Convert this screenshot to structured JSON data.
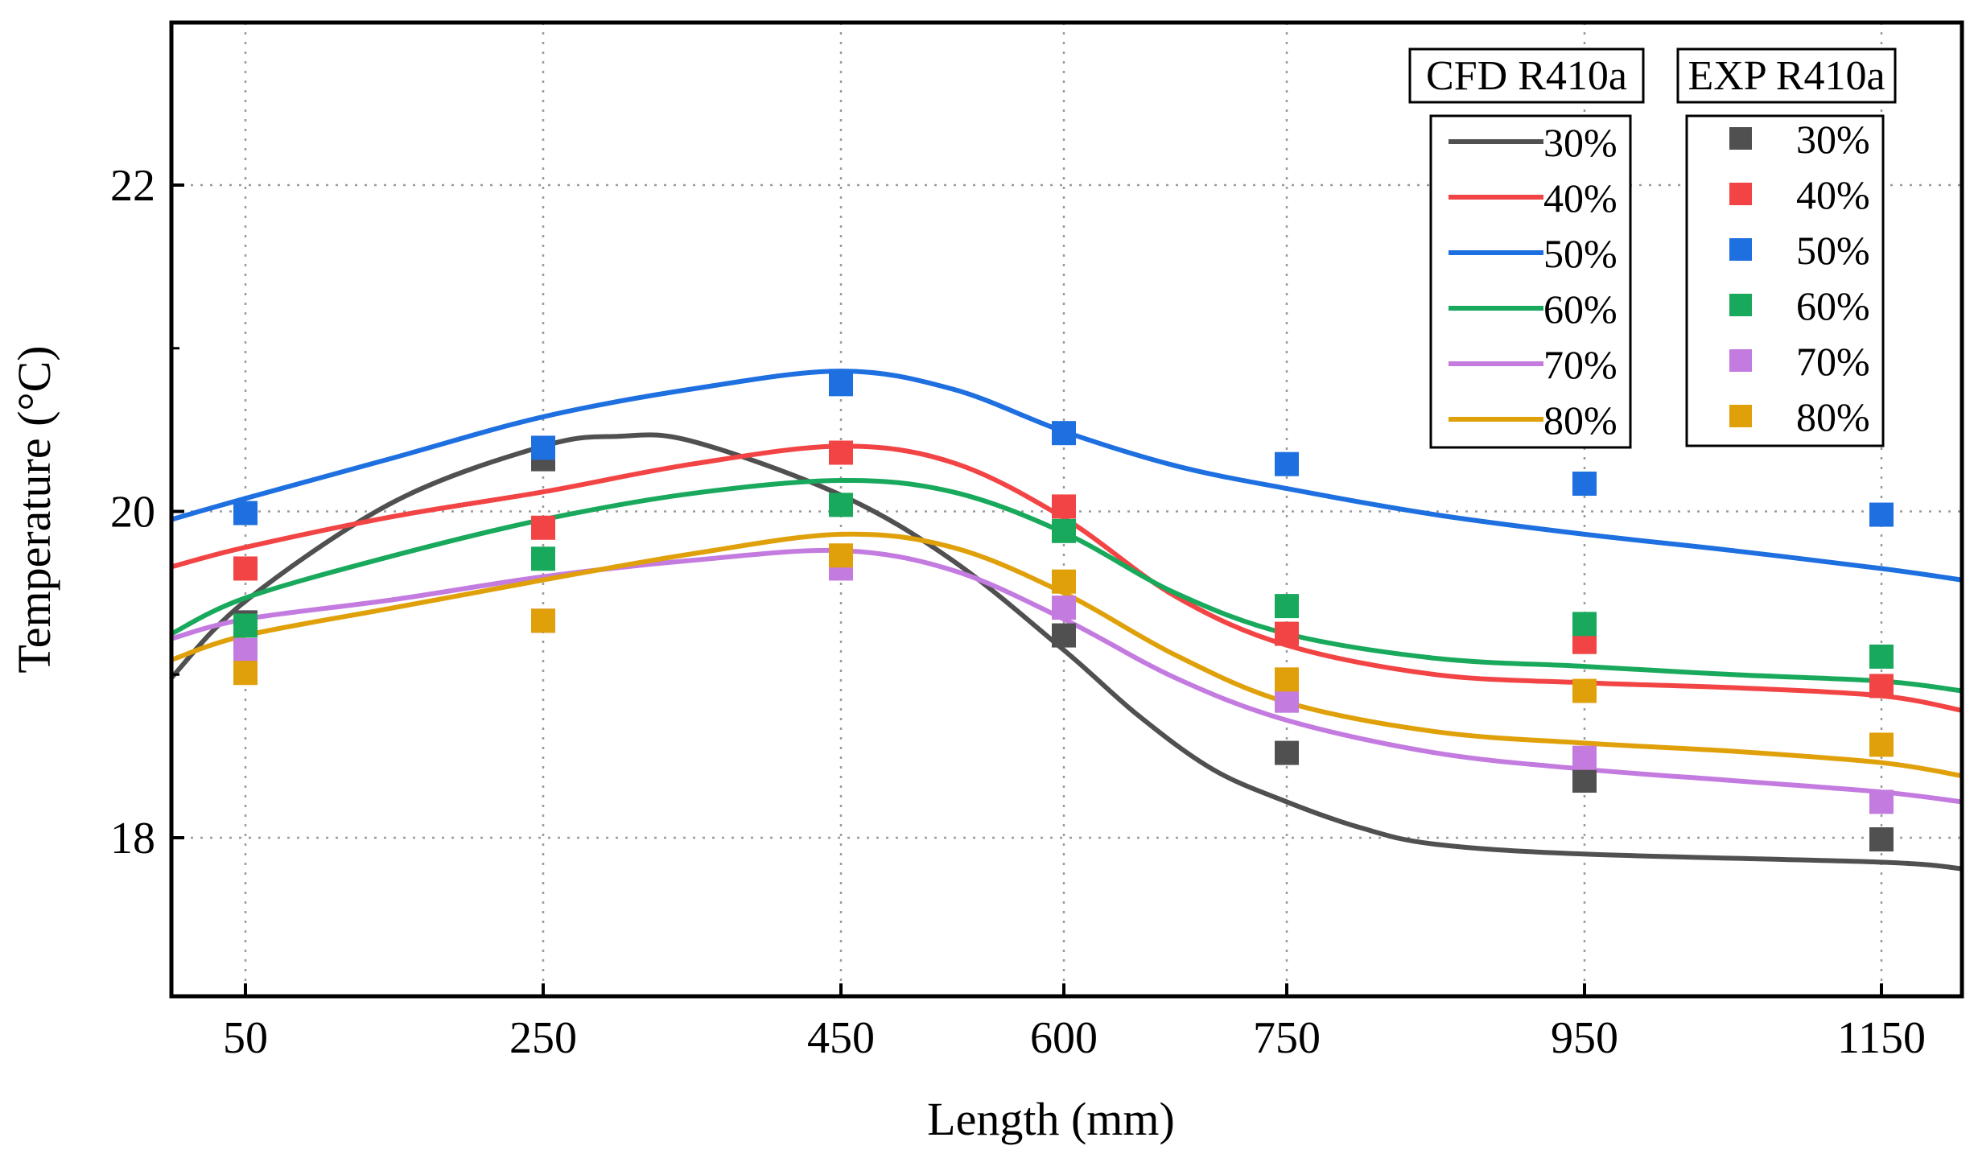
{
  "chart_data": {
    "type": "line",
    "title": "",
    "xlabel": "Length (mm)",
    "ylabel": "Temperature (°C)",
    "x_ticks": [
      50,
      250,
      450,
      600,
      750,
      950,
      1150
    ],
    "y_ticks": [
      18,
      20,
      22
    ],
    "ylim": [
      17,
      23.1
    ],
    "grid": true,
    "cfd_legend_title": "CFD R410a",
    "exp_legend_title": "EXP R410a",
    "cfd_series": [
      {
        "name": "30%",
        "color": "#505050",
        "values": [
          [
            0,
            18.98
          ],
          [
            50,
            19.45
          ],
          [
            150,
            20.06
          ],
          [
            250,
            20.4
          ],
          [
            300,
            20.46
          ],
          [
            350,
            20.43
          ],
          [
            450,
            20.1
          ],
          [
            525,
            19.7
          ],
          [
            600,
            19.15
          ],
          [
            650,
            18.75
          ],
          [
            700,
            18.42
          ],
          [
            750,
            18.22
          ],
          [
            800,
            18.06
          ],
          [
            850,
            17.96
          ],
          [
            950,
            17.9
          ],
          [
            1150,
            17.85
          ],
          [
            1200,
            17.81
          ]
        ]
      },
      {
        "name": "40%",
        "color": "#F24444",
        "values": [
          [
            0,
            19.66
          ],
          [
            50,
            19.78
          ],
          [
            150,
            19.97
          ],
          [
            250,
            20.12
          ],
          [
            350,
            20.29
          ],
          [
            450,
            20.4
          ],
          [
            525,
            20.3
          ],
          [
            600,
            19.96
          ],
          [
            675,
            19.48
          ],
          [
            750,
            19.18
          ],
          [
            850,
            19.0
          ],
          [
            950,
            18.95
          ],
          [
            1050,
            18.92
          ],
          [
            1150,
            18.87
          ],
          [
            1200,
            18.78
          ]
        ]
      },
      {
        "name": "50%",
        "color": "#1E6FE0",
        "values": [
          [
            0,
            19.95
          ],
          [
            50,
            20.08
          ],
          [
            150,
            20.33
          ],
          [
            250,
            20.58
          ],
          [
            350,
            20.75
          ],
          [
            450,
            20.86
          ],
          [
            525,
            20.75
          ],
          [
            600,
            20.49
          ],
          [
            675,
            20.28
          ],
          [
            750,
            20.14
          ],
          [
            850,
            19.98
          ],
          [
            950,
            19.86
          ],
          [
            1050,
            19.76
          ],
          [
            1150,
            19.65
          ],
          [
            1200,
            19.58
          ]
        ]
      },
      {
        "name": "60%",
        "color": "#19A95C",
        "values": [
          [
            0,
            19.25
          ],
          [
            50,
            19.47
          ],
          [
            150,
            19.73
          ],
          [
            250,
            19.95
          ],
          [
            350,
            20.11
          ],
          [
            450,
            20.19
          ],
          [
            525,
            20.12
          ],
          [
            600,
            19.87
          ],
          [
            675,
            19.5
          ],
          [
            750,
            19.25
          ],
          [
            850,
            19.1
          ],
          [
            950,
            19.05
          ],
          [
            1050,
            19.0
          ],
          [
            1150,
            18.96
          ],
          [
            1200,
            18.9
          ]
        ]
      },
      {
        "name": "70%",
        "color": "#C47BE0",
        "values": [
          [
            0,
            19.22
          ],
          [
            50,
            19.34
          ],
          [
            150,
            19.46
          ],
          [
            250,
            19.6
          ],
          [
            350,
            19.7
          ],
          [
            450,
            19.76
          ],
          [
            525,
            19.64
          ],
          [
            600,
            19.34
          ],
          [
            675,
            18.98
          ],
          [
            750,
            18.72
          ],
          [
            850,
            18.52
          ],
          [
            950,
            18.42
          ],
          [
            1050,
            18.35
          ],
          [
            1150,
            18.28
          ],
          [
            1200,
            18.22
          ]
        ]
      },
      {
        "name": "80%",
        "color": "#E0A00A",
        "values": [
          [
            0,
            19.09
          ],
          [
            50,
            19.24
          ],
          [
            150,
            19.41
          ],
          [
            250,
            19.58
          ],
          [
            350,
            19.74
          ],
          [
            450,
            19.86
          ],
          [
            525,
            19.78
          ],
          [
            600,
            19.5
          ],
          [
            675,
            19.12
          ],
          [
            750,
            18.83
          ],
          [
            850,
            18.65
          ],
          [
            950,
            18.58
          ],
          [
            1050,
            18.53
          ],
          [
            1150,
            18.46
          ],
          [
            1200,
            18.38
          ]
        ]
      }
    ],
    "exp_series": [
      {
        "name": "30%",
        "color": "#505050",
        "values": [
          19.32,
          20.32,
          19.67,
          19.24,
          18.52,
          18.35,
          17.99
        ]
      },
      {
        "name": "40%",
        "color": "#F24444",
        "values": [
          19.65,
          19.9,
          20.36,
          20.03,
          19.25,
          19.2,
          18.93
        ]
      },
      {
        "name": "50%",
        "color": "#1E6FE0",
        "values": [
          19.99,
          20.39,
          20.78,
          20.48,
          20.29,
          20.17,
          19.98
        ]
      },
      {
        "name": "60%",
        "color": "#19A95C",
        "values": [
          19.3,
          19.71,
          20.04,
          19.88,
          19.42,
          19.31,
          19.11
        ]
      },
      {
        "name": "70%",
        "color": "#C47BE0",
        "values": [
          19.15,
          19.33,
          19.65,
          19.41,
          18.84,
          18.49,
          18.22
        ]
      },
      {
        "name": "80%",
        "color": "#E0A00A",
        "values": [
          19.01,
          19.33,
          19.73,
          19.57,
          18.97,
          18.9,
          18.57
        ]
      }
    ]
  }
}
